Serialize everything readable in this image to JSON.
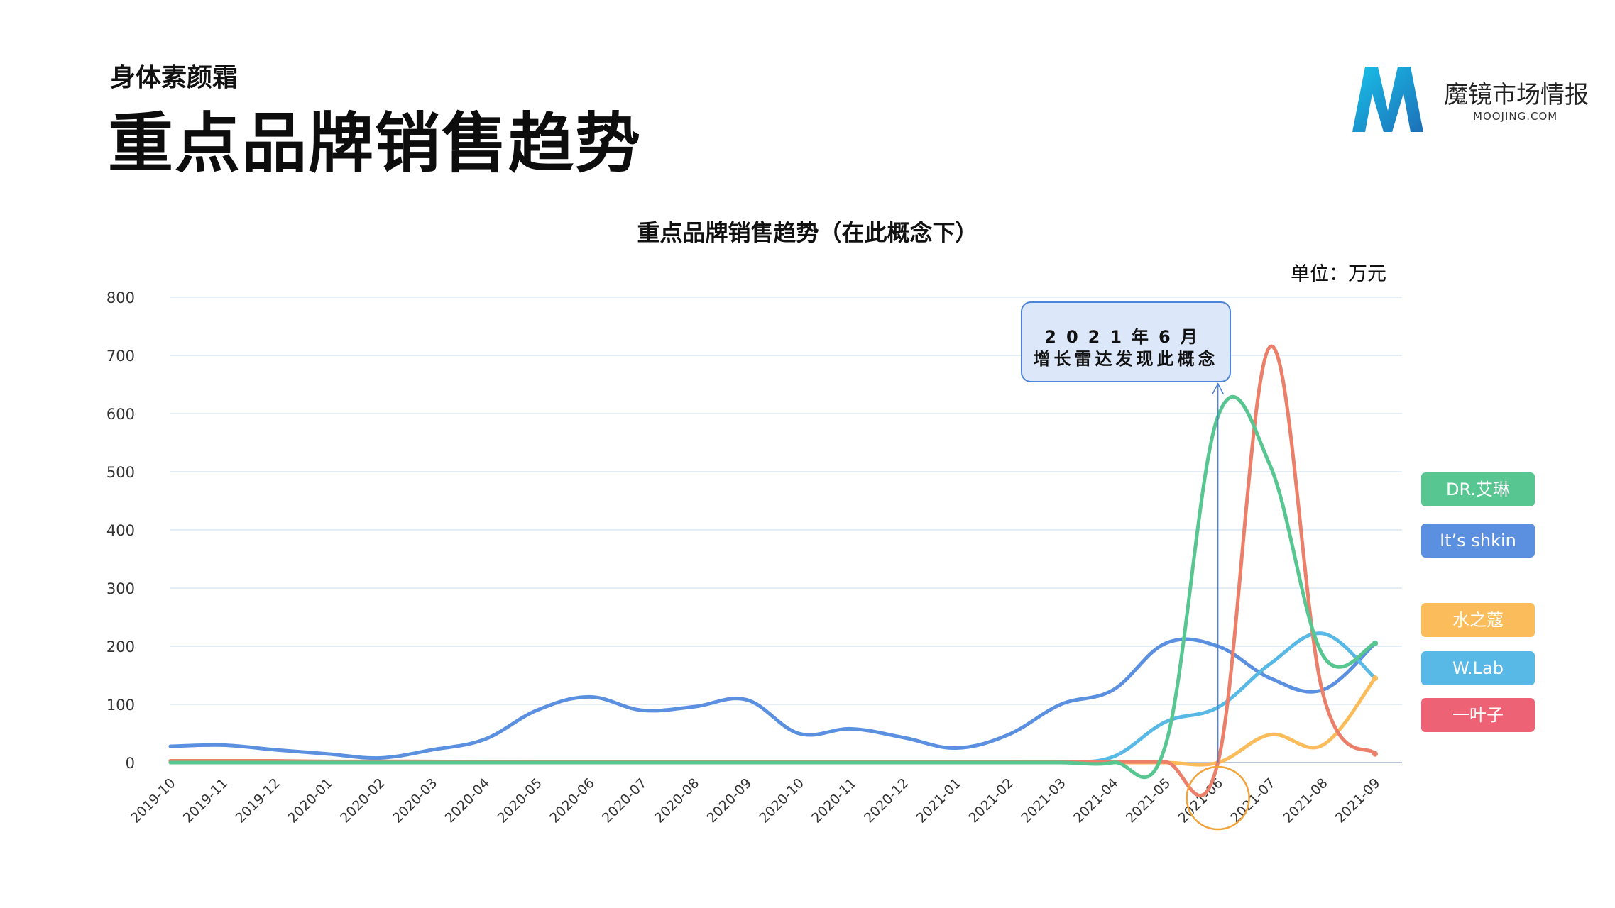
{
  "header": {
    "subtitle": "身体素颜霜",
    "title": "重点品牌销售趋势"
  },
  "logo": {
    "name": "魔镜市场情报",
    "url": "MOOJING.COM"
  },
  "callout": {
    "line1": "2021年6月",
    "line2": "增长雷达发现此概念"
  },
  "chart_data": {
    "type": "line",
    "title": "重点品牌销售趋势（在此概念下）",
    "unit": "单位：万元",
    "ylim": [
      0,
      800
    ],
    "yticks": [
      0,
      100,
      200,
      300,
      400,
      500,
      600,
      700,
      800
    ],
    "grid": true,
    "legend_position": "right",
    "highlight_category": "2021-06",
    "categories": [
      "2019-10",
      "2019-11",
      "2019-12",
      "2020-01",
      "2020-02",
      "2020-03",
      "2020-04",
      "2020-05",
      "2020-06",
      "2020-07",
      "2020-08",
      "2020-09",
      "2020-10",
      "2020-11",
      "2020-12",
      "2021-01",
      "2021-02",
      "2021-03",
      "2021-04",
      "2021-05",
      "2021-06",
      "2021-07",
      "2021-08",
      "2021-09"
    ],
    "series": [
      {
        "name": "DR.艾琳",
        "color": "#57c690",
        "values": [
          0,
          0,
          0,
          0,
          0,
          0,
          0,
          0,
          0,
          0,
          0,
          0,
          0,
          0,
          0,
          0,
          0,
          0,
          0,
          30,
          595,
          510,
          185,
          205
        ]
      },
      {
        "name": "It’s shkin",
        "color": "#5b8fe0",
        "values": [
          28,
          30,
          22,
          15,
          8,
          22,
          40,
          90,
          113,
          90,
          96,
          108,
          50,
          58,
          43,
          25,
          48,
          100,
          125,
          205,
          200,
          145,
          125,
          205
        ]
      },
      {
        "name": "水之蔻",
        "color": "#fbbd5c",
        "values": [
          0,
          0,
          0,
          0,
          0,
          0,
          0,
          0,
          0,
          0,
          0,
          0,
          0,
          0,
          0,
          0,
          0,
          0,
          0,
          0,
          0,
          48,
          30,
          145
        ]
      },
      {
        "name": "W.Lab",
        "color": "#58b8e6",
        "values": [
          2,
          3,
          2,
          2,
          1,
          1,
          1,
          1,
          1,
          1,
          1,
          1,
          1,
          1,
          1,
          1,
          1,
          1,
          10,
          70,
          95,
          170,
          222,
          145
        ]
      },
      {
        "name": "一叶子",
        "color": "#ec7f6a",
        "legend_color": "#ee6275",
        "values": [
          3,
          3,
          3,
          2,
          2,
          2,
          1,
          1,
          1,
          1,
          1,
          1,
          1,
          1,
          1,
          1,
          1,
          1,
          1,
          1,
          0,
          715,
          120,
          15
        ]
      }
    ]
  }
}
